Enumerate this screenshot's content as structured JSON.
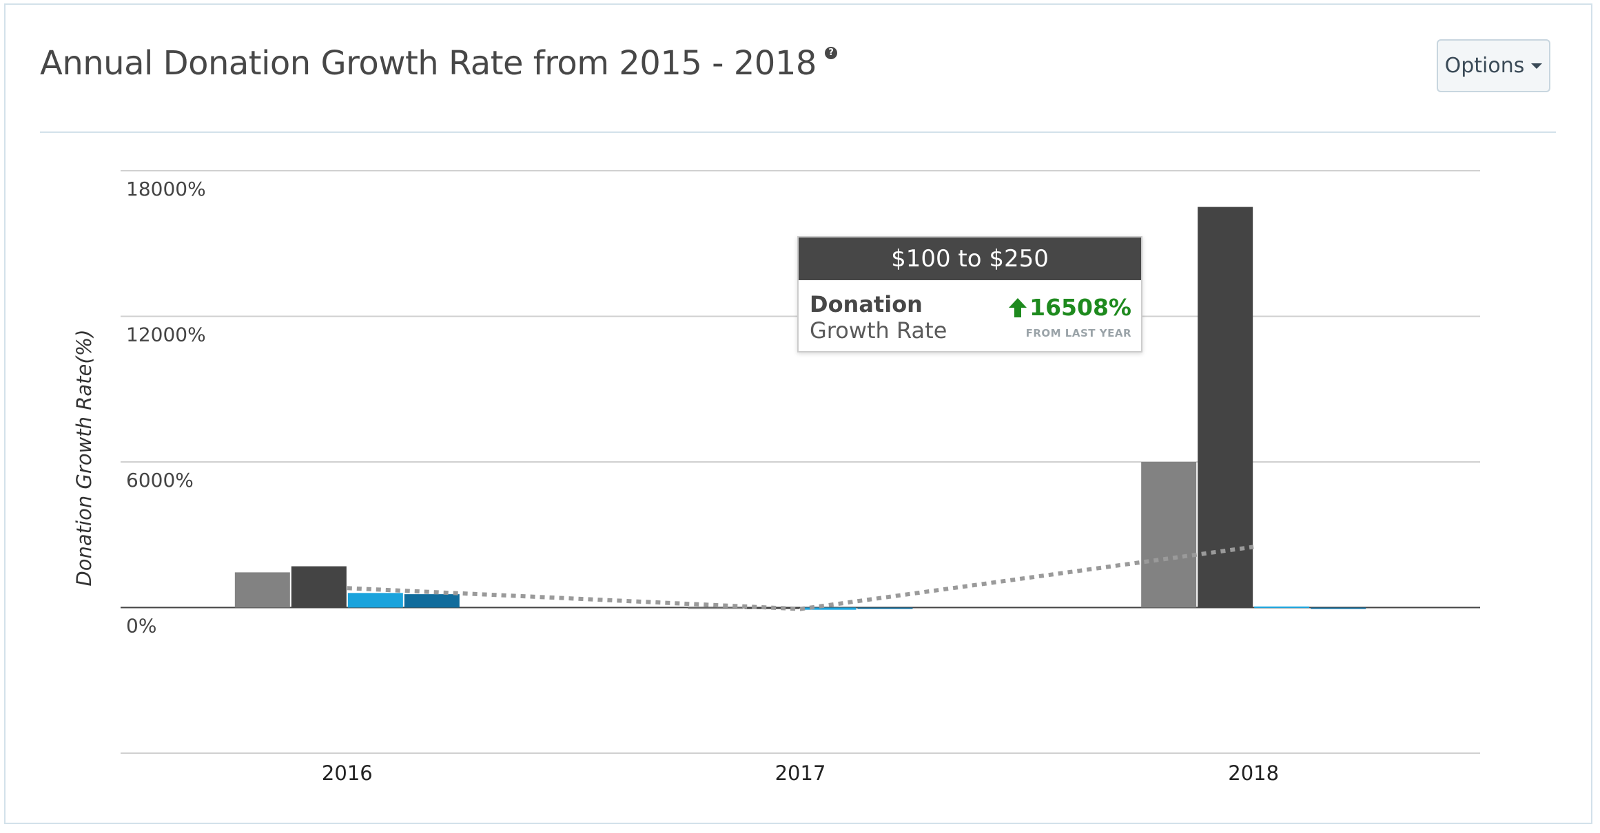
{
  "header": {
    "title": "Annual Donation Growth Rate from 2015 - 2018",
    "help_icon": "question-circle-icon",
    "options_label": "Options",
    "options_icon": "caret-down-icon"
  },
  "tooltip": {
    "title": "$100 to $250",
    "label_line1": "Donation",
    "label_line2": "Growth Rate",
    "value": "16508%",
    "value_icon": "arrow-up-icon",
    "subtext": "FROM LAST YEAR",
    "value_color": "#1e8a1e"
  },
  "chart_data": {
    "type": "bar",
    "categories": [
      "2016",
      "2017",
      "2018"
    ],
    "ylabel": "Donation Growth Rate(%)",
    "xlabel": "",
    "ylim": [
      -6000,
      18000
    ],
    "y_ticks": [
      18000,
      12000,
      6000,
      0
    ],
    "y_tick_labels": [
      "18000%",
      "12000%",
      "6000%",
      "0%"
    ],
    "grid": true,
    "series": [
      {
        "color": "#828282",
        "values": [
          1450,
          -40,
          6000
        ]
      },
      {
        "color": "#444444",
        "values": [
          1700,
          -60,
          16508
        ]
      },
      {
        "color": "#1aa3dc",
        "values": [
          600,
          -90,
          40
        ]
      },
      {
        "color": "#116c9c",
        "values": [
          550,
          -30,
          -40
        ]
      }
    ],
    "trendline": {
      "style": "dotted",
      "color": "#9a9a9a",
      "values": [
        800,
        -60,
        2500
      ]
    }
  }
}
